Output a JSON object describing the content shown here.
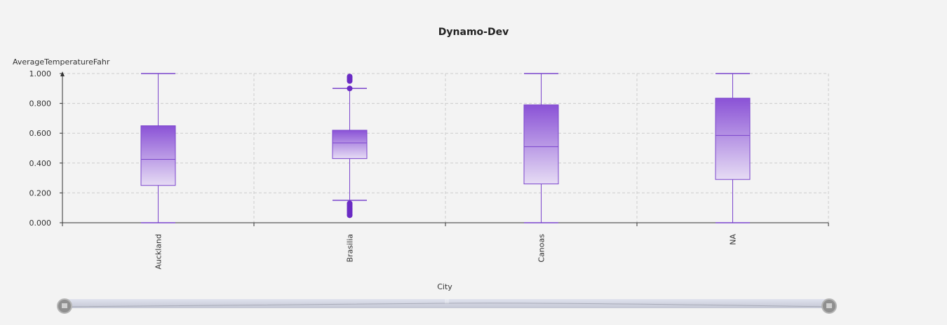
{
  "chart_data": {
    "type": "boxplot",
    "title": "Dynamo-Dev",
    "xlabel": "City",
    "ylabel": "AverageTemperatureFahr",
    "ylim": [
      0,
      1
    ],
    "yticks": [
      "0.000",
      "0.200",
      "0.400",
      "0.600",
      "0.800",
      "1.000"
    ],
    "grid": true,
    "categories": [
      "Auckland",
      "Brasilia",
      "Canoas",
      "NA"
    ],
    "boxes": [
      {
        "category": "Auckland",
        "whisker_low": 0.0,
        "q1": 0.25,
        "median": 0.425,
        "q3": 0.65,
        "whisker_high": 1.0,
        "outliers": []
      },
      {
        "category": "Brasilia",
        "whisker_low": 0.15,
        "q1": 0.43,
        "median": 0.535,
        "q3": 0.62,
        "whisker_high": 0.9,
        "outliers": [
          0.05,
          0.06,
          0.07,
          0.08,
          0.09,
          0.1,
          0.11,
          0.12,
          0.13,
          0.9,
          0.95,
          0.96,
          0.97,
          0.98
        ]
      },
      {
        "category": "Canoas",
        "whisker_low": 0.0,
        "q1": 0.26,
        "median": 0.51,
        "q3": 0.79,
        "whisker_high": 1.0,
        "outliers": []
      },
      {
        "category": "NA",
        "whisker_low": 0.0,
        "q1": 0.29,
        "median": 0.585,
        "q3": 0.835,
        "whisker_high": 1.0,
        "outliers": []
      }
    ],
    "colors": {
      "box_top": "#8a52d6",
      "box_bottom": "#e6dcf4",
      "line": "#7b45cc",
      "outlier": "#6a2bc4",
      "grid": "#cccccc",
      "axis": "#333333"
    }
  }
}
